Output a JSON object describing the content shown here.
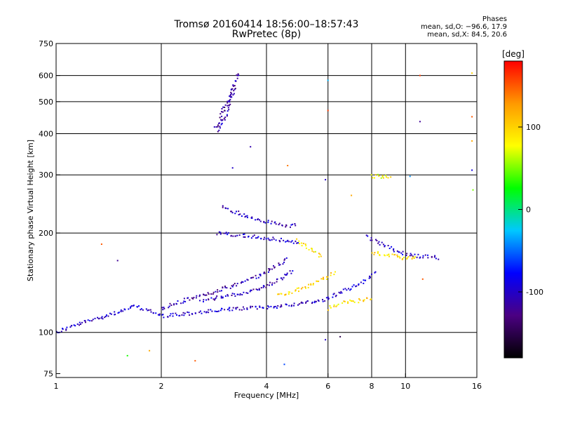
{
  "chart_data": {
    "type": "scatter",
    "title": "Tromsø 20160414 18:56:00–18:57:43",
    "subtitle": "RwPretec (8p)",
    "xlabel": "Frequency [MHz]",
    "ylabel": "Stationary phase Virtual Height [km]",
    "xscale": "log",
    "yscale": "log",
    "xlim": [
      1,
      16
    ],
    "ylim": [
      73,
      750
    ],
    "xticks": [
      1,
      2,
      4,
      6,
      8,
      10,
      16
    ],
    "yticks": [
      75,
      100,
      200,
      300,
      400,
      500,
      600,
      750
    ],
    "xgrid": [
      2,
      4,
      6,
      8,
      10
    ],
    "ygrid": [
      100,
      200,
      300,
      400,
      500,
      600
    ],
    "grid": true,
    "colorbar": {
      "label": "[deg]",
      "min": -180,
      "max": 180,
      "ticks": [
        100,
        0,
        -100
      ],
      "colors": [
        "#000000",
        "#4b0082",
        "#0000ff",
        "#00c8ff",
        "#00ff00",
        "#ffff00",
        "#ff9900",
        "#ff0000"
      ]
    },
    "stats_box": {
      "heading": "Phases",
      "line1": "mean, sd,O: −96.6, 17.9",
      "line2": "mean, sd,X:  84.5, 20.6"
    },
    "traces": [
      {
        "name": "low-f-trace",
        "phase": -100,
        "points": [
          [
            1.0,
            100
          ],
          [
            1.1,
            104
          ],
          [
            1.3,
            110
          ],
          [
            1.5,
            115
          ],
          [
            1.7,
            120
          ],
          [
            2.0,
            112
          ],
          [
            2.4,
            114
          ],
          [
            2.8,
            116
          ],
          [
            3.3,
            118
          ],
          [
            4.0,
            119
          ],
          [
            4.6,
            121
          ],
          [
            5.2,
            123
          ],
          [
            5.8,
            125
          ],
          [
            6.3,
            130
          ],
          [
            6.8,
            135
          ],
          [
            7.3,
            140
          ],
          [
            7.8,
            145
          ],
          [
            8.2,
            152
          ]
        ]
      },
      {
        "name": "ordinary-trace-1",
        "phase": -110,
        "points": [
          [
            2.0,
            118
          ],
          [
            2.4,
            126
          ],
          [
            2.8,
            132
          ],
          [
            3.2,
            138
          ],
          [
            3.6,
            145
          ],
          [
            4.0,
            152
          ],
          [
            4.3,
            160
          ],
          [
            4.6,
            168
          ]
        ]
      },
      {
        "name": "ordinary-trace-2",
        "phase": -105,
        "points": [
          [
            2.6,
            125
          ],
          [
            3.0,
            128
          ],
          [
            3.5,
            132
          ],
          [
            4.0,
            138
          ],
          [
            4.4,
            146
          ],
          [
            4.8,
            155
          ]
        ]
      },
      {
        "name": "extraordinary-lower",
        "phase": 100,
        "points": [
          [
            4.3,
            130
          ],
          [
            4.8,
            133
          ],
          [
            5.3,
            138
          ],
          [
            5.8,
            145
          ],
          [
            6.3,
            152
          ]
        ]
      },
      {
        "name": "extraordinary-upper",
        "phase": 95,
        "points": [
          [
            6.0,
            118
          ],
          [
            6.5,
            122
          ],
          [
            7.0,
            124
          ],
          [
            7.5,
            125
          ],
          [
            8.0,
            127
          ]
        ]
      },
      {
        "name": "f-layer-o",
        "phase": -100,
        "points": [
          [
            2.9,
            200
          ],
          [
            3.2,
            198
          ],
          [
            3.6,
            195
          ],
          [
            4.0,
            193
          ],
          [
            4.5,
            190
          ],
          [
            4.8,
            188
          ],
          [
            5.0,
            185
          ]
        ]
      },
      {
        "name": "f-layer-x",
        "phase": 90,
        "points": [
          [
            4.9,
            190
          ],
          [
            5.2,
            182
          ],
          [
            5.5,
            175
          ],
          [
            5.8,
            168
          ]
        ]
      },
      {
        "name": "high-cusp",
        "phase": -100,
        "points": [
          [
            7.8,
            195
          ],
          [
            8.3,
            188
          ],
          [
            8.8,
            182
          ],
          [
            9.4,
            176
          ],
          [
            10.2,
            172
          ],
          [
            11.0,
            170
          ],
          [
            11.8,
            169
          ],
          [
            12.5,
            168
          ]
        ]
      },
      {
        "name": "high-cusp-x",
        "phase": 95,
        "points": [
          [
            8.0,
            175
          ],
          [
            8.6,
            172
          ],
          [
            9.3,
            170
          ],
          [
            10.0,
            168
          ],
          [
            10.8,
            168
          ]
        ]
      },
      {
        "name": "spread-f",
        "phase": -105,
        "points": [
          [
            3.0,
            240
          ],
          [
            3.3,
            230
          ],
          [
            3.7,
            220
          ],
          [
            4.1,
            215
          ],
          [
            4.5,
            210
          ],
          [
            4.9,
            212
          ]
        ]
      },
      {
        "name": "top-plume",
        "phase": -110,
        "points": [
          [
            2.9,
            410
          ],
          [
            3.0,
            430
          ],
          [
            3.05,
            450
          ],
          [
            3.1,
            480
          ],
          [
            3.15,
            510
          ],
          [
            3.2,
            540
          ],
          [
            3.25,
            570
          ],
          [
            3.3,
            600
          ],
          [
            3.35,
            620
          ]
        ]
      },
      {
        "name": "top-plume-2",
        "phase": -120,
        "points": [
          [
            2.85,
            420
          ],
          [
            2.95,
            440
          ],
          [
            3.0,
            470
          ],
          [
            3.1,
            500
          ],
          [
            3.2,
            530
          ],
          [
            3.28,
            560
          ]
        ]
      },
      {
        "name": "x-high-band",
        "phase": 80,
        "points": [
          [
            8.0,
            297
          ],
          [
            8.4,
            297
          ],
          [
            8.8,
            296
          ],
          [
            9.2,
            297
          ]
        ]
      }
    ],
    "scatter_points": [
      {
        "x": 1.5,
        "y": 165,
        "phase": -120
      },
      {
        "x": 1.35,
        "y": 185,
        "phase": 150
      },
      {
        "x": 1.6,
        "y": 85,
        "phase": 30
      },
      {
        "x": 1.85,
        "y": 88,
        "phase": 120
      },
      {
        "x": 2.5,
        "y": 82,
        "phase": 150
      },
      {
        "x": 3.6,
        "y": 365,
        "phase": -110
      },
      {
        "x": 3.2,
        "y": 315,
        "phase": -100
      },
      {
        "x": 4.6,
        "y": 320,
        "phase": 140
      },
      {
        "x": 5.9,
        "y": 290,
        "phase": -100
      },
      {
        "x": 6.0,
        "y": 470,
        "phase": 160
      },
      {
        "x": 6.0,
        "y": 580,
        "phase": -30
      },
      {
        "x": 5.9,
        "y": 95,
        "phase": -100
      },
      {
        "x": 6.5,
        "y": 97,
        "phase": -150
      },
      {
        "x": 4.5,
        "y": 80,
        "phase": -60
      },
      {
        "x": 11.0,
        "y": 600,
        "phase": 160
      },
      {
        "x": 11.0,
        "y": 435,
        "phase": -120
      },
      {
        "x": 15.5,
        "y": 610,
        "phase": 100
      },
      {
        "x": 15.5,
        "y": 450,
        "phase": 150
      },
      {
        "x": 15.5,
        "y": 380,
        "phase": 120
      },
      {
        "x": 15.5,
        "y": 310,
        "phase": -90
      },
      {
        "x": 15.6,
        "y": 270,
        "phase": 50
      },
      {
        "x": 11.2,
        "y": 145,
        "phase": 150
      },
      {
        "x": 10.3,
        "y": 297,
        "phase": -40
      },
      {
        "x": 7.0,
        "y": 260,
        "phase": 120
      }
    ]
  }
}
